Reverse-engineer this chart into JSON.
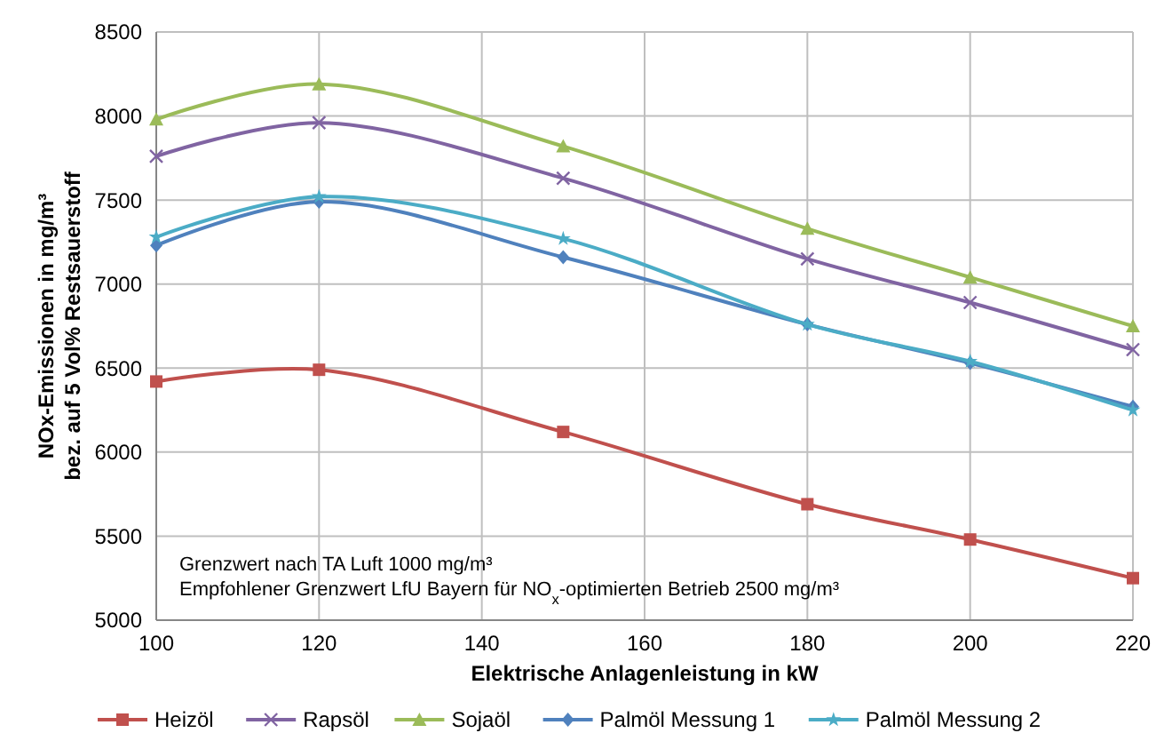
{
  "chart_data": {
    "type": "line",
    "xlabel": "Elektrische Anlagenleistung in kW",
    "ylabel": "NOx-Emissionen in mg/m³\nbez. auf 5 Vol% Restsauerstoff",
    "x": [
      100,
      120,
      150,
      180,
      200,
      220
    ],
    "xlim": [
      100,
      220
    ],
    "xticks": [
      100,
      120,
      140,
      160,
      180,
      200,
      220
    ],
    "ylim": [
      5000,
      8500
    ],
    "yticks": [
      5000,
      5500,
      6000,
      6500,
      7000,
      7500,
      8000,
      8500
    ],
    "grid": true,
    "legend": "bottom",
    "series": [
      {
        "name": "Heizöl",
        "color": "#c0504d",
        "marker": "square",
        "values": [
          6420,
          6490,
          6120,
          5690,
          5480,
          5250
        ]
      },
      {
        "name": "Rapsöl",
        "color": "#8064a2",
        "marker": "cross",
        "values": [
          7760,
          7960,
          7630,
          7150,
          6890,
          6610
        ]
      },
      {
        "name": "Sojaöl",
        "color": "#9bbb59",
        "marker": "triangle",
        "values": [
          7980,
          8190,
          7820,
          7330,
          7040,
          6750
        ]
      },
      {
        "name": "Palmöl Messung 1",
        "color": "#4f81bd",
        "marker": "diamond",
        "values": [
          7230,
          7490,
          7160,
          6760,
          6530,
          6270
        ]
      },
      {
        "name": "Palmöl Messung 2",
        "color": "#4bacc6",
        "marker": "star",
        "values": [
          7280,
          7520,
          7270,
          6760,
          6540,
          6250
        ]
      }
    ],
    "annotations": [
      "Grenzwert nach TA Luft 1000 mg/m³",
      "Empfohlener Grenzwert LfU Bayern für NO$_{x}$-optimierten Betrieb 2500 mg/m³"
    ]
  }
}
